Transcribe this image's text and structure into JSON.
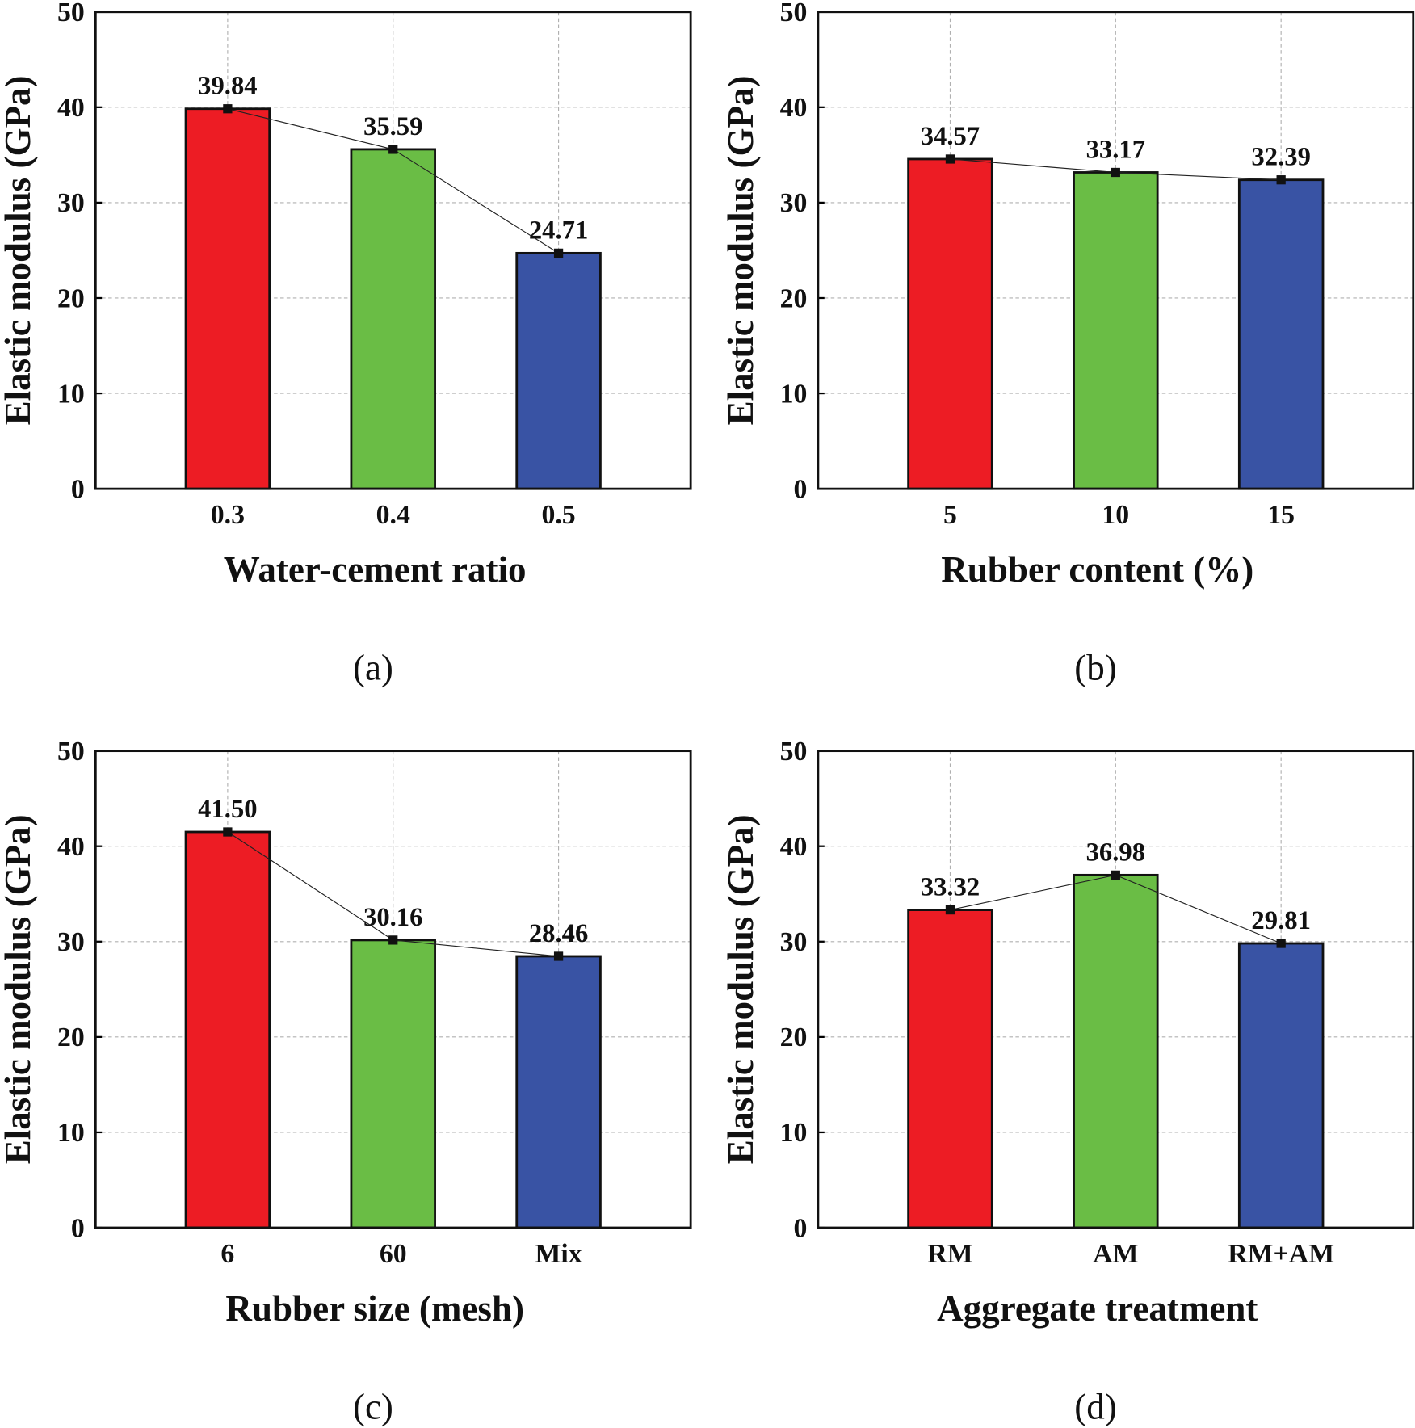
{
  "colors": {
    "bars": [
      "#ed1c24",
      "#6abd45",
      "#3953a4"
    ],
    "grid": "#b0b0b0"
  },
  "chart_data": [
    {
      "type": "bar",
      "panel": "(a)",
      "categories": [
        "0.3",
        "0.4",
        "0.5"
      ],
      "values": [
        39.84,
        35.59,
        24.71
      ],
      "value_labels": [
        "39.84",
        "35.59",
        "24.71"
      ],
      "xlabel": "Water-cement ratio",
      "ylabel": "Elastic modulus (GPa)",
      "ylim": [
        0,
        50
      ],
      "yticks": [
        "0",
        "10",
        "20",
        "30",
        "40",
        "50"
      ],
      "grid": true,
      "connecting_line": true
    },
    {
      "type": "bar",
      "panel": "(b)",
      "categories": [
        "5",
        "10",
        "15"
      ],
      "values": [
        34.57,
        33.17,
        32.39
      ],
      "value_labels": [
        "34.57",
        "33.17",
        "32.39"
      ],
      "xlabel": "Rubber content (%)",
      "ylabel": "Elastic modulus (GPa)",
      "ylim": [
        0,
        50
      ],
      "yticks": [
        "0",
        "10",
        "20",
        "30",
        "40",
        "50"
      ],
      "grid": true,
      "connecting_line": true
    },
    {
      "type": "bar",
      "panel": "(c)",
      "categories": [
        "6",
        "60",
        "Mix"
      ],
      "values": [
        41.5,
        30.16,
        28.46
      ],
      "value_labels": [
        "41.50",
        "30.16",
        "28.46"
      ],
      "xlabel": "Rubber size (mesh)",
      "ylabel": "Elastic modulus (GPa)",
      "ylim": [
        0,
        50
      ],
      "yticks": [
        "0",
        "10",
        "20",
        "30",
        "40",
        "50"
      ],
      "grid": true,
      "connecting_line": true
    },
    {
      "type": "bar",
      "panel": "(d)",
      "categories": [
        "RM",
        "AM",
        "RM+AM"
      ],
      "values": [
        33.32,
        36.98,
        29.81
      ],
      "value_labels": [
        "33.32",
        "36.98",
        "29.81"
      ],
      "xlabel": "Aggregate treatment",
      "ylabel": "Elastic modulus (GPa)",
      "ylim": [
        0,
        50
      ],
      "yticks": [
        "0",
        "10",
        "20",
        "30",
        "40",
        "50"
      ],
      "grid": true,
      "connecting_line": true
    }
  ]
}
